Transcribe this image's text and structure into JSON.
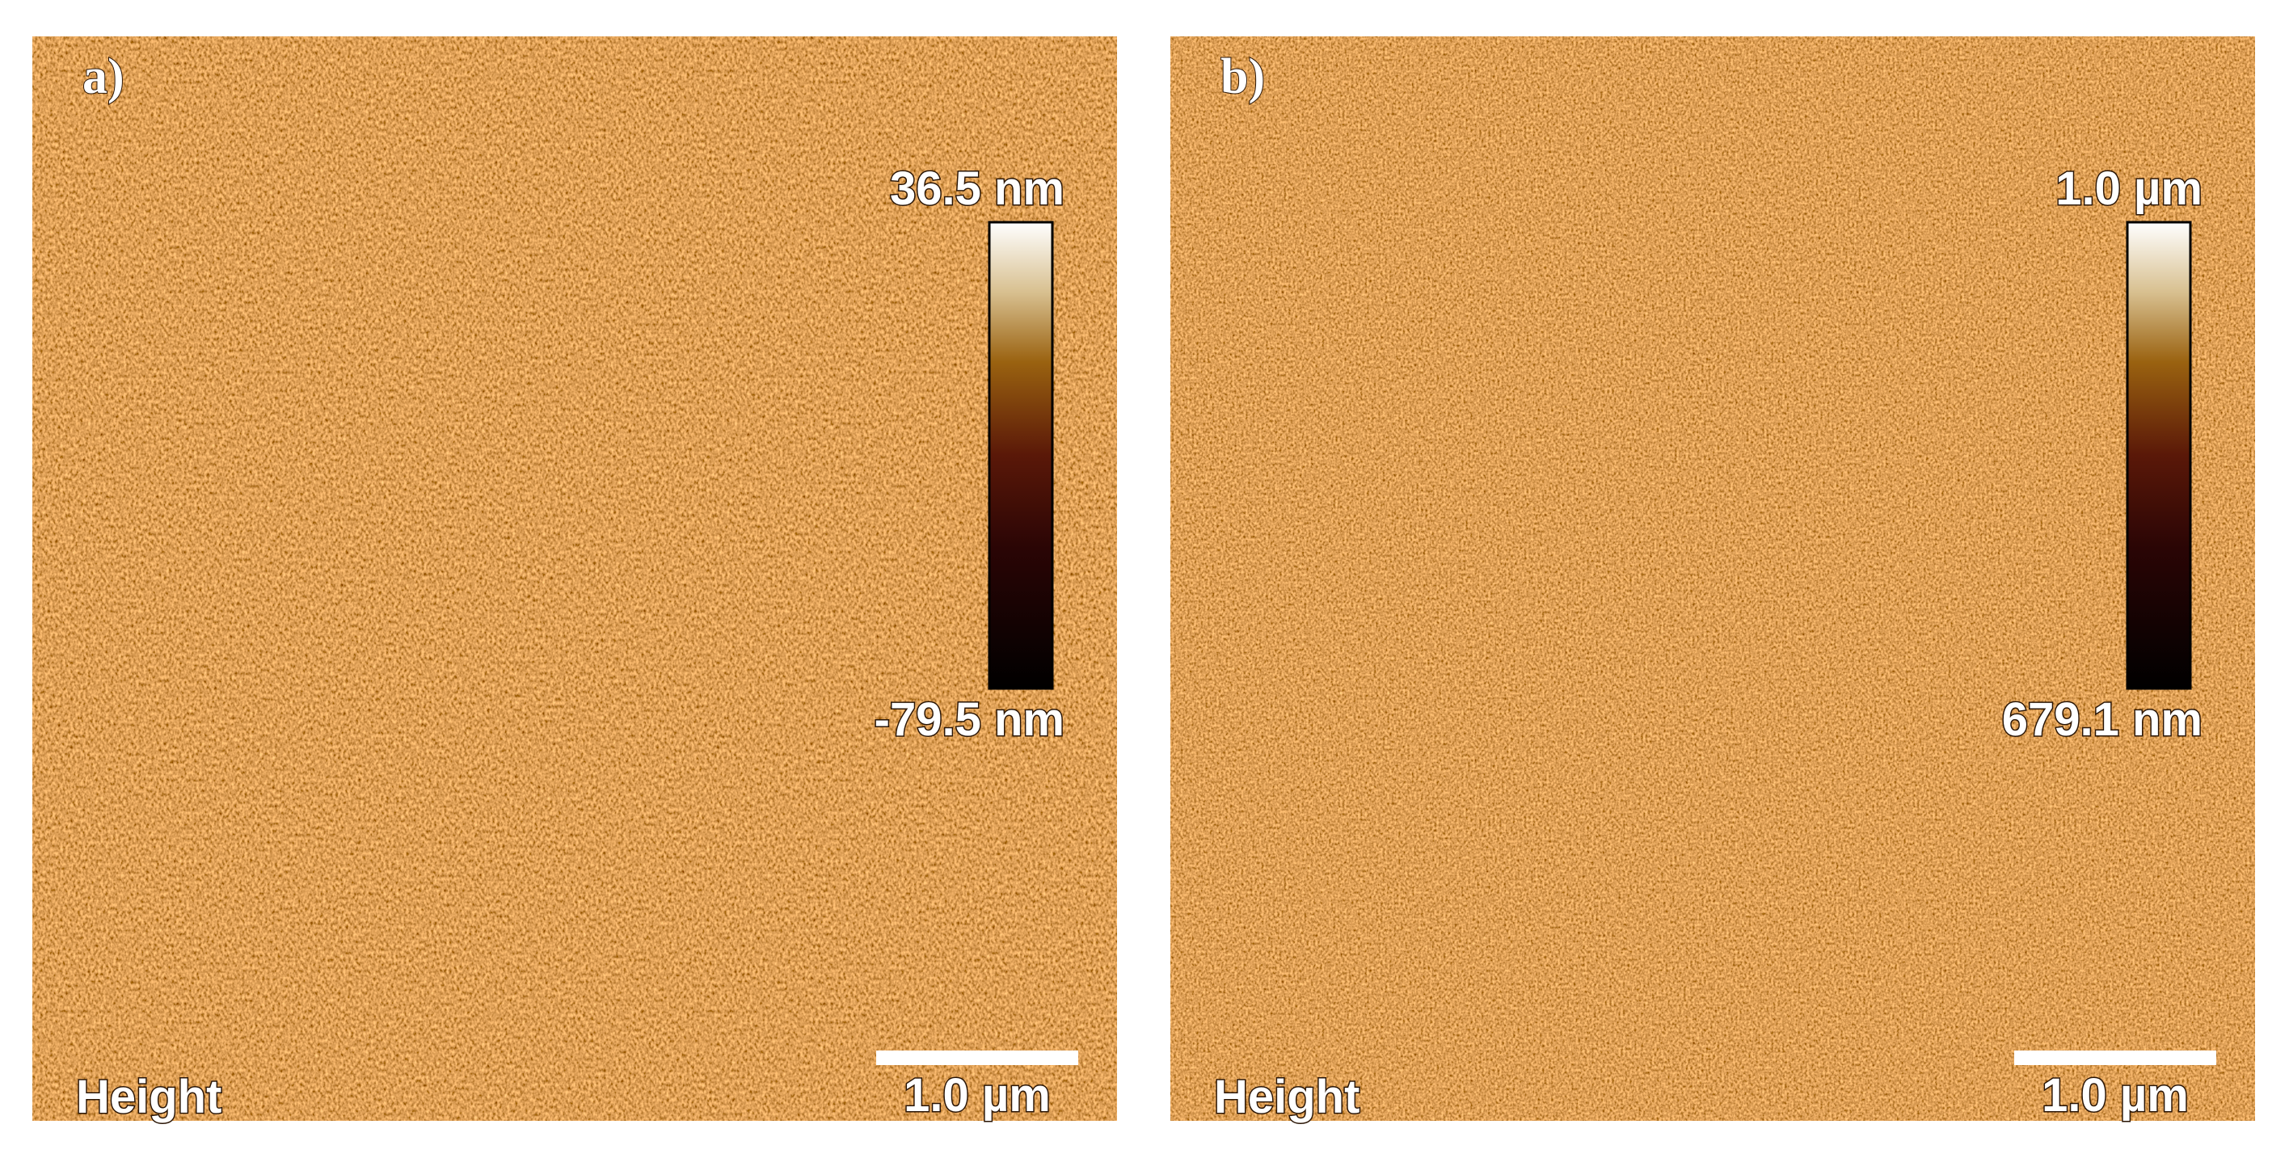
{
  "panels": [
    {
      "label": "a)",
      "colorbar_max": "36.5 nm",
      "colorbar_min": "-79.5 nm",
      "mode": "Height",
      "scale_bar": "1.0 µm"
    },
    {
      "label": "b)",
      "colorbar_max": "1.0 µm",
      "colorbar_min": "679.1 nm",
      "mode": "Height",
      "scale_bar": "1.0 µm"
    }
  ]
}
